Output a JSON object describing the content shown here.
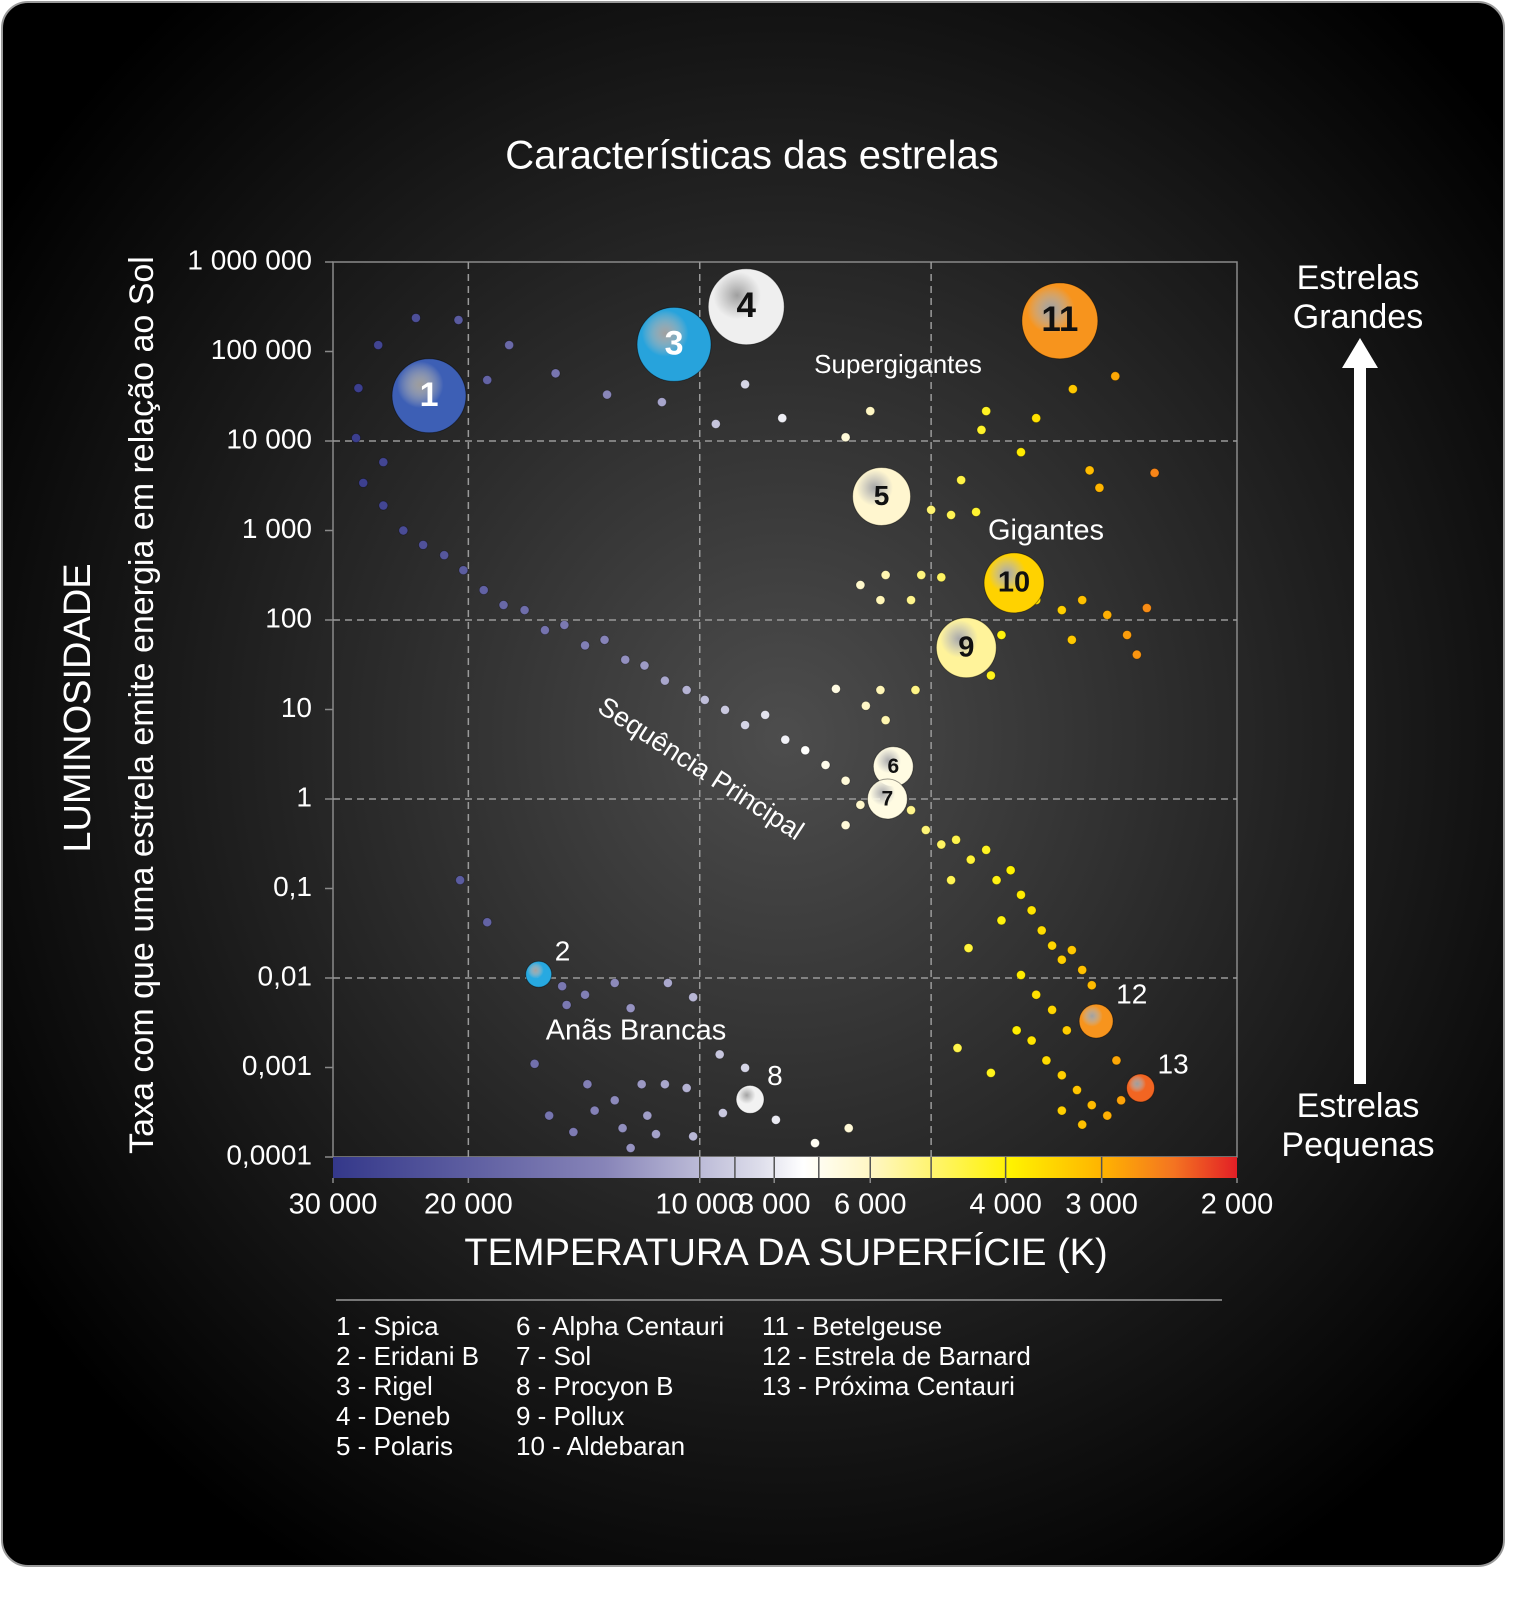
{
  "chart_data": {
    "type": "scatter",
    "title": "Características das estrelas",
    "x_label": "TEMPERATURA DA SUPERFÍCIE (K)",
    "y_label": "LUMINOSIDADE",
    "y_sublabel": "Taxa com que uma estrela emite energia em relação ao Sol",
    "xscale": "log",
    "yscale": "log",
    "xlim": [
      30000,
      2000
    ],
    "ylim": [
      0.0001,
      1000000
    ],
    "xticks": [
      {
        "value": 30000,
        "label": "30 000"
      },
      {
        "value": 20000,
        "label": "20 000"
      },
      {
        "value": 10000,
        "label": "10 000"
      },
      {
        "value": 8000,
        "label": "8 000"
      },
      {
        "value": 6000,
        "label": "6 000"
      },
      {
        "value": 4000,
        "label": "4 000"
      },
      {
        "value": 3000,
        "label": "3 000"
      },
      {
        "value": 2000,
        "label": "2 000"
      }
    ],
    "yticks": [
      {
        "value": 1000000,
        "label": "1 000 000"
      },
      {
        "value": 100000,
        "label": "100 000"
      },
      {
        "value": 10000,
        "label": "10 000"
      },
      {
        "value": 1000,
        "label": "1 000"
      },
      100,
      10,
      1,
      {
        "value": 0.1,
        "label": "0,1"
      },
      {
        "value": 0.01,
        "label": "0,01"
      },
      {
        "value": 0.001,
        "label": "0,001"
      },
      {
        "value": 0.0001,
        "label": "0,0001"
      }
    ],
    "xgrid": [
      20000,
      10000,
      5000
    ],
    "ygrid": [
      10000,
      100,
      1,
      0.01
    ],
    "colorbar": {
      "colors": [
        "#34388a",
        "#8784b8",
        "#dcdcea",
        "#ffffff",
        "#fff6bf",
        "#fff200",
        "#ffb400",
        "#f47421",
        "#e21f26"
      ],
      "stops": [
        0,
        0.3,
        0.47,
        0.52,
        0.6,
        0.75,
        0.85,
        0.93,
        1
      ]
    },
    "colorbar_ticks": [
      10000,
      9000,
      8000,
      7000,
      6000,
      5000,
      4000,
      3000
    ],
    "x": [
      27400,
      25800,
      24300,
      22900,
      21500,
      20300,
      19100,
      18000,
      16900,
      15900,
      15000,
      14100,
      13300,
      12500,
      11800,
      11100,
      10400,
      9850,
      9270,
      8730,
      8220,
      7740,
      7290,
      6860,
      6460,
      6180,
      6460,
      5310,
      5080,
      4850,
      4640,
      4440,
      4240,
      4710,
      4110,
      3940,
      3820,
      3700,
      3590,
      3480,
      3380,
      3280,
      3180,
      3090,
      3820,
      3650,
      3480,
      3700,
      3540,
      3380,
      3230,
      3090,
      2950,
      2830,
      3380,
      3180,
      2870,
      3330,
      3870,
      4050,
      6180,
      5730,
      5820,
      5310,
      5150,
      4850,
      5000,
      4710,
      4370,
      4570,
      3650,
      3380,
      3180,
      2950,
      2780,
      2700,
      2620,
      3280,
      4050,
      4180,
      5240,
      5820,
      6650,
      5730,
      6080,
      6460,
      6000,
      4240,
      4300,
      3820,
      3650,
      3270,
      2880,
      3110,
      3020,
      2560,
      7810,
      9530,
      11200,
      8730,
      13200,
      15400,
      17700,
      18900,
      20600,
      23400,
      26200,
      27800,
      28000,
      25800,
      20500,
      18900,
      15100,
      14900,
      14100,
      12900,
      12300,
      11000,
      10200,
      9420,
      16400,
      14000,
      12900,
      11900,
      11100,
      10400,
      15700,
      13700,
      11700,
      14600,
      12600,
      11400,
      10200,
      12300,
      8730,
      9330,
      7960,
      7080,
      6400,
      4470,
      4620,
      4180
    ],
    "y": [
      3400,
      1900,
      1000,
      690,
      530,
      360,
      216,
      147,
      129,
      77,
      88,
      52,
      60,
      36,
      31,
      21,
      16.5,
      12.8,
      9.9,
      6.7,
      8.7,
      4.6,
      3.5,
      2.4,
      1.6,
      0.86,
      0.51,
      0.75,
      0.45,
      0.31,
      0.35,
      0.21,
      0.27,
      0.124,
      0.124,
      0.16,
      0.085,
      0.057,
      0.034,
      0.023,
      0.016,
      0.0205,
      0.0123,
      0.0083,
      0.0108,
      0.0065,
      0.0044,
      0.002,
      0.0012,
      0.00082,
      0.00056,
      0.00038,
      0.00029,
      0.00043,
      0.00033,
      0.00023,
      0.0012,
      0.0026,
      0.0026,
      0.044,
      246,
      318,
      167,
      167,
      318,
      300,
      1700,
      1490,
      1610,
      3660,
      167,
      129,
      167,
      114,
      68,
      41,
      136,
      60,
      68,
      24,
      16.5,
      16.5,
      17,
      7.6,
      11,
      11000,
      21600,
      21600,
      13300,
      7500,
      18000,
      38000,
      53000,
      4700,
      3000,
      4400,
      18000,
      15500,
      27200,
      43000,
      33000,
      57000,
      118000,
      48000,
      225000,
      237000,
      118000,
      39000,
      10800,
      5800,
      0.124,
      0.042,
      0.0081,
      0.005,
      0.0065,
      0.0088,
      0.0046,
      0.0088,
      0.0061,
      0.0014,
      0.0011,
      0.00065,
      0.00043,
      0.00065,
      0.00065,
      0.00059,
      0.00029,
      0.00033,
      0.00029,
      0.00019,
      0.00021,
      0.00018,
      0.00017,
      0.000126,
      0.00099,
      0.00031,
      0.00026,
      0.000143,
      0.00021,
      0.0216,
      0.00165,
      0.00087
    ],
    "stars": [
      {
        "label": "1",
        "x": 22500,
        "y": 32000,
        "size": 37,
        "color": "#3d5fb5"
      },
      {
        "label": "2",
        "x": 16200,
        "y": 0.011,
        "size": 13,
        "color": "#27a9e1"
      },
      {
        "label": "3",
        "x": 10800,
        "y": 120000,
        "size": 37,
        "color": "#27a3dc"
      },
      {
        "label": "4",
        "x": 8700,
        "y": 316000,
        "size": 38,
        "color": "#efefef"
      },
      {
        "label": "5",
        "x": 5800,
        "y": 2400,
        "size": 29,
        "color": "#fff6cf"
      },
      {
        "label": "6",
        "x": 5600,
        "y": 2.3,
        "size": 20,
        "color": "#fffbe2"
      },
      {
        "label": "7",
        "x": 5700,
        "y": 1,
        "size": 20,
        "color": "#fffbe2"
      },
      {
        "label": "8",
        "x": 8600,
        "y": 0.00044,
        "size": 14,
        "color": "#f2f2f2"
      },
      {
        "label": "9",
        "x": 4500,
        "y": 49,
        "size": 30,
        "color": "#fff39a"
      },
      {
        "label": "10",
        "x": 3900,
        "y": 260,
        "size": 30,
        "color": "#ffd200"
      },
      {
        "label": "11",
        "x": 3400,
        "y": 220000,
        "size": 38,
        "color": "#f7941d"
      },
      {
        "label": "12",
        "x": 3050,
        "y": 0.0033,
        "size": 17,
        "color": "#f7941d"
      },
      {
        "label": "13",
        "x": 2670,
        "y": 0.00059,
        "size": 14,
        "color": "#f26522"
      }
    ],
    "annotations": [
      "Supergigantes",
      "Gigantes",
      "Sequência Principal",
      "Anãs Brancas"
    ],
    "side_labels": {
      "top": [
        "Estrelas",
        "Grandes"
      ],
      "bottom": [
        "Estrelas",
        "Pequenas"
      ]
    },
    "legend": [
      "1 - Spica",
      "2 - Eridani B",
      "3 - Rigel",
      "4 - Deneb",
      "5 - Polaris",
      "6 - Alpha Centauri",
      "7 - Sol",
      "8 - Procyon B",
      "9 - Pollux",
      "10 - Aldebaran",
      "11 - Betelgeuse",
      "12 - Estrela de Barnard",
      "13 - Próxima Centauri"
    ]
  }
}
